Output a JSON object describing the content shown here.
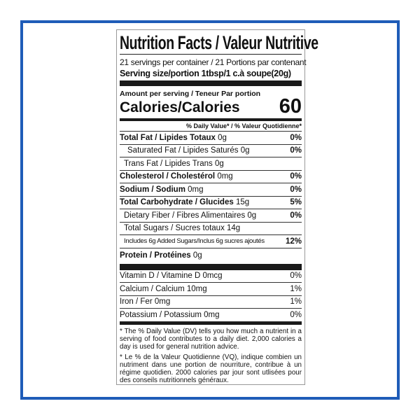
{
  "colors": {
    "frame": "#1f5cb8",
    "ink": "#1a1a1a"
  },
  "label": {
    "title": "Nutrition Facts / Valeur Nutritive",
    "servings": "21 servings per container / 21 Portions par contenant",
    "serving_size": "Serving size/portion 1tbsp/1 c.à soupe(20g)",
    "amount_per_serving": "Amount per serving /  Teneur Par portion",
    "calories_label": "Calories/Calories",
    "calories_value": "60",
    "dv_header": "% Daily Value* / % Valeur Quotidienne*",
    "nutrients": [
      {
        "name": "Total Fat / Lipides Totaux",
        "amount": "0g",
        "dv": "0%"
      },
      {
        "name": "Saturated Fat / Lipides Saturés 0g",
        "amount": "",
        "dv": "0%"
      },
      {
        "name": "Trans Fat / Lipides  Trans 0g",
        "amount": "",
        "dv": ""
      },
      {
        "name": "Cholesterol / Cholestérol",
        "amount": "0mg",
        "dv": "0%"
      },
      {
        "name": "Sodium / Sodium",
        "amount": "0mg",
        "dv": "0%"
      },
      {
        "name": "Total Carbohydrate / Glucides",
        "amount": "15g",
        "dv": "5%"
      },
      {
        "name": "Dietary Fiber / Fibres Alimentaires 0g",
        "amount": "",
        "dv": "0%"
      },
      {
        "name": "Total Sugars / Sucres totaux 14g",
        "amount": "",
        "dv": ""
      },
      {
        "name": "Includes 6g Added Sugars/Inclus 6g sucres ajoutés",
        "amount": "",
        "dv": "12%"
      },
      {
        "name": "Protein / Protéines",
        "amount": "0g",
        "dv": ""
      }
    ],
    "vitamins": [
      {
        "name": "Vitamin D / Vitamine D   0mcg",
        "dv": "0%"
      },
      {
        "name": "Calcium / Calcium  10mg",
        "dv": "1%"
      },
      {
        "name": "Iron / Fer   0mg",
        "dv": "1%"
      },
      {
        "name": "Potassium / Potassium 0mg",
        "dv": "0%"
      }
    ],
    "footnote_en": "* The % Daily Value (DV) tells you how much a nutrient in a serving of food contributes to a daily diet. 2,000 calories a day is used for general nutrition advice.",
    "footnote_fr": "* Le % de la Valeur Quotidienne (VQ), indique combien un nutriment dans une portion de nourriture, contribue à un régime quotidien. 2000 calories par jour sont utlisées pour des conseils nutritionnels généraux."
  }
}
